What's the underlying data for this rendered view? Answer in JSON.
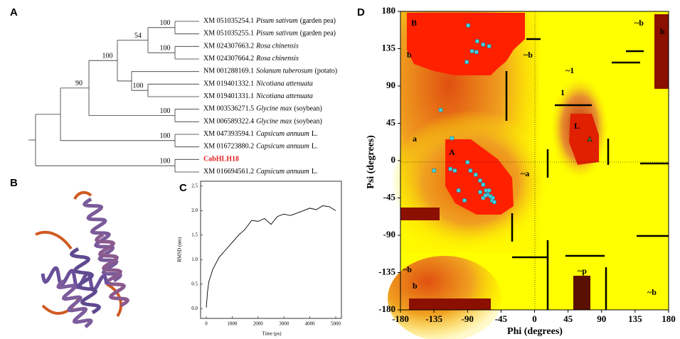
{
  "panel_labels": [
    "A",
    "B",
    "C",
    "D"
  ],
  "tree": {
    "leaves": [
      {
        "accession": "XM 051035254.1",
        "species": "Pisum sativum",
        "note": "(garden pea)"
      },
      {
        "accession": "XM 051035255.1",
        "species": "Pisum sativum",
        "note": "(garden pea)"
      },
      {
        "accession": "XM 024307663.2",
        "species": "Rosa chinensis"
      },
      {
        "accession": "XM 024307664.2",
        "species": "Rosa chinensis"
      },
      {
        "accession": "NM 001288169.1",
        "species": "Solanum tuberosum",
        "note": "(potato)"
      },
      {
        "accession": "XM 019401332.1",
        "species": "Nicotiana attenuata"
      },
      {
        "accession": "XM 019401331.1",
        "species": "Nicotiana attenuata"
      },
      {
        "accession": "XM 003536271.5",
        "species": "Glycine max",
        "note": "(soybean)"
      },
      {
        "accession": "XM 006589322.4",
        "species": "Glycine max",
        "note": "(soybean)"
      },
      {
        "accession": "XM 047393594.1",
        "species": "Capsicum annuum",
        "note": "L."
      },
      {
        "accession": "XM 016723880.2",
        "species": "Capsicum annuum",
        "note": "L."
      },
      {
        "accession": "CabHLH18",
        "color": "#e02020"
      },
      {
        "accession": "XM 016694561.2",
        "species": "Capsicum annuum",
        "note": "L."
      }
    ],
    "support": [
      100,
      54,
      100,
      100,
      100,
      90,
      100,
      100,
      100
    ]
  },
  "chart_data": [
    {
      "type": "line",
      "xlabel": "Time (ps)",
      "ylabel": "RMSD (nm)",
      "color": "#000000",
      "x": [
        0,
        50,
        100,
        250,
        500,
        750,
        1000,
        1250,
        1500,
        1750,
        2000,
        2250,
        2500,
        2750,
        3000,
        3250,
        3500,
        3750,
        4000,
        4250,
        4500,
        4750,
        5000
      ],
      "values": [
        0.02,
        0.35,
        0.55,
        0.8,
        1.05,
        1.2,
        1.35,
        1.5,
        1.62,
        1.8,
        1.78,
        1.84,
        1.72,
        1.88,
        1.93,
        1.9,
        1.95,
        2.0,
        2.05,
        2.02,
        2.1,
        2.08,
        2.0
      ],
      "xlim": [
        -220,
        5220
      ],
      "ylim": [
        -0.2,
        2.6
      ],
      "xticks": [
        0,
        1000,
        2000,
        3000,
        4000,
        5000
      ],
      "yticks": [
        {
          "value": 0,
          "label": "0.0"
        },
        0.5,
        {
          "value": 1,
          "label": "1.0"
        },
        1.5,
        {
          "value": 2,
          "label": "2.0"
        },
        2.5
      ]
    },
    {
      "type": "scatter",
      "xlabel": "Phi (degrees)",
      "ylabel": "Psi (degrees)",
      "series": [
        {
          "color": "#3fd4e6",
          "marker": "square",
          "x": [
            -89,
            -77,
            -69,
            -84,
            -78,
            -91,
            -61,
            -126,
            -111,
            -135,
            -113,
            -107,
            -90,
            -86,
            -79,
            -73,
            -69,
            -65,
            -63,
            -59,
            -69,
            -57,
            -61,
            -66,
            -56,
            -73,
            -54,
            -94,
            -102
          ],
          "values": [
            163,
            144,
            140,
            132,
            131,
            119,
            138,
            61,
            27,
            -12,
            -10,
            -12,
            -2,
            -12,
            -17,
            -24,
            -29,
            -36,
            -41,
            -43,
            -45,
            -48,
            -36,
            -42,
            -45,
            -38,
            -50,
            -48,
            -36
          ]
        },
        {
          "color": "#556b2f",
          "marker": "triangle",
          "x": [
            74
          ],
          "values": [
            26
          ]
        }
      ],
      "region_labels": [
        "B",
        "b",
        "~b",
        "~1",
        "1",
        "L",
        "a",
        "A",
        "~a",
        "~b",
        "b",
        "~b",
        "b",
        "~p",
        "~b"
      ],
      "xlim": [
        -180,
        180
      ],
      "ylim": [
        -180,
        180
      ],
      "xticks": [
        -180,
        -135,
        -90,
        -45,
        0,
        45,
        90,
        135,
        180
      ],
      "yticks": [
        -180,
        -135,
        -90,
        -45,
        0,
        45,
        90,
        135,
        180
      ]
    }
  ]
}
